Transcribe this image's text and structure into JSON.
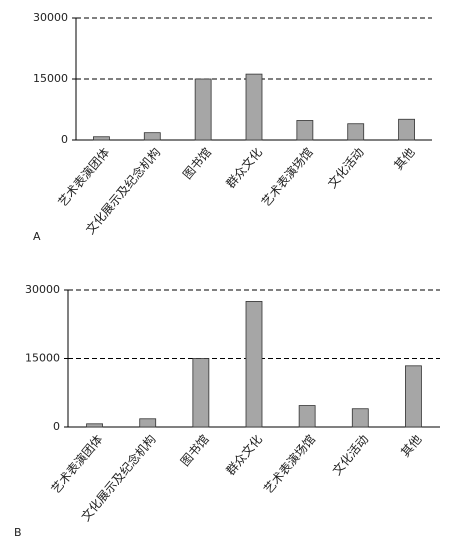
{
  "chart_data": [
    {
      "type": "bar",
      "label": "A",
      "categories": [
        "艺术表演团体",
        "文化展示及纪念机构",
        "图书馆",
        "群众文化",
        "艺术表演场馆",
        "文化活动",
        "其他"
      ],
      "values": [
        800,
        1800,
        15000,
        16200,
        4800,
        4000,
        5100
      ],
      "color": "#a6a6a6",
      "ylim": [
        0,
        30000
      ],
      "yticks": [
        0,
        15000,
        30000
      ],
      "grid": true
    },
    {
      "type": "bar",
      "label": "B",
      "categories": [
        "艺术表演团体",
        "文化展示及纪念机构",
        "图书馆",
        "群众文化",
        "艺术表演场馆",
        "文化活动",
        "其他"
      ],
      "values": [
        700,
        1800,
        15000,
        27500,
        4700,
        4000,
        13400
      ],
      "color": "#a6a6a6",
      "ylim": [
        0,
        30000
      ],
      "yticks": [
        0,
        15000,
        30000
      ],
      "grid": true
    }
  ]
}
